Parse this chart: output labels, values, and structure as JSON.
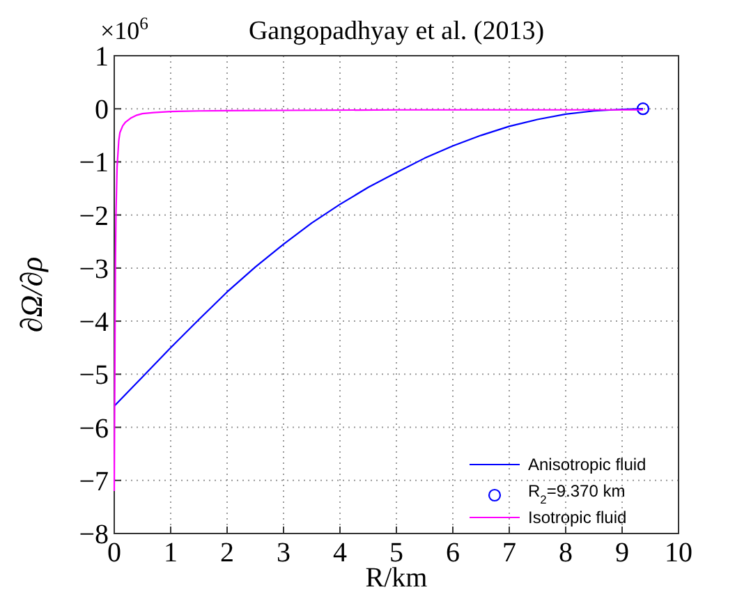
{
  "chart_data": {
    "type": "line",
    "title": "Gangopadhyay et al. (2013)",
    "xlabel": "R/km",
    "ylabel": "∂Ω/∂ρ",
    "annotations": [
      "×10$^{6}$"
    ],
    "xlim": [
      0,
      10
    ],
    "xticks": [
      0,
      1,
      2,
      3,
      4,
      5,
      6,
      7,
      8,
      9,
      10
    ],
    "ylim": [
      -8,
      1
    ],
    "yticks": [
      -8,
      -7,
      -6,
      -5,
      -4,
      -3,
      -2,
      -1,
      0,
      1
    ],
    "grid": true,
    "legend": "bottom right",
    "line_style": "solid",
    "series": [
      {
        "name": "Anisotropic fluid",
        "color": "#0000ff",
        "x": [
          0,
          0.5,
          1,
          1.5,
          2,
          2.5,
          3,
          3.5,
          4,
          4.5,
          5,
          5.5,
          6,
          6.5,
          7,
          7.5,
          8,
          8.5,
          9,
          9.37
        ],
        "values": [
          -5.6,
          -5.05,
          -4.5,
          -3.97,
          -3.45,
          -2.98,
          -2.55,
          -2.15,
          -1.8,
          -1.48,
          -1.2,
          -0.93,
          -0.7,
          -0.5,
          -0.33,
          -0.2,
          -0.1,
          -0.04,
          -0.01,
          0
        ]
      },
      {
        "name": "R$_{2}$=9.370 km",
        "type": "scatter",
        "marker": "circle",
        "color": "#0000ff",
        "x": [
          9.37
        ],
        "values": [
          0
        ]
      },
      {
        "name": "Isotropic fluid",
        "color": "#ff00ff",
        "x": [
          0,
          0.005,
          0.01,
          0.02,
          0.03,
          0.05,
          0.08,
          0.1,
          0.15,
          0.2,
          0.3,
          0.4,
          0.5,
          0.7,
          1,
          1.5,
          2,
          3,
          5,
          7,
          9.37
        ],
        "values": [
          -7.2,
          -6,
          -5,
          -3,
          -2,
          -1.1,
          -0.6,
          -0.45,
          -0.32,
          -0.25,
          -0.17,
          -0.12,
          -0.09,
          -0.07,
          -0.05,
          -0.04,
          -0.035,
          -0.03,
          -0.02,
          -0.02,
          -0.02
        ]
      }
    ]
  }
}
